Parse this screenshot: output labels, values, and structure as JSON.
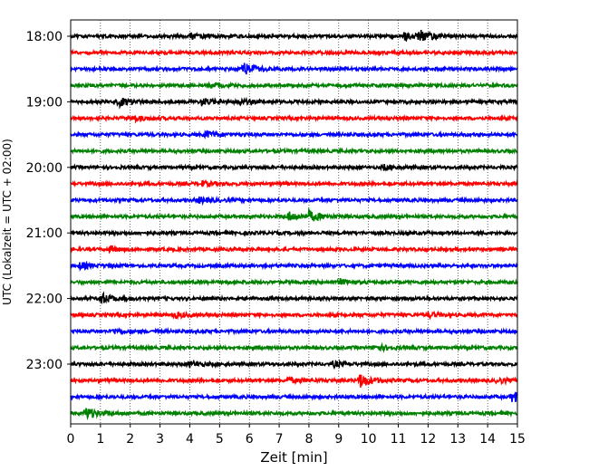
{
  "chart_data": {
    "type": "line",
    "title": "",
    "xlabel": "Zeit  [min]",
    "ylabel": "UTC (Lokalzeit = UTC + 02:00)",
    "xlim": [
      0,
      15
    ],
    "x_ticks": [
      0,
      1,
      2,
      3,
      4,
      5,
      6,
      7,
      8,
      9,
      10,
      11,
      12,
      13,
      14,
      15
    ],
    "x_tick_labels": [
      "0",
      "1",
      "2",
      "3",
      "4",
      "5",
      "6",
      "7",
      "8",
      "9",
      "10",
      "11",
      "12",
      "13",
      "14",
      "15"
    ],
    "y_tick_labels": [
      "18:00",
      "19:00",
      "20:00",
      "21:00",
      "22:00",
      "23:00"
    ],
    "vertical_grid": true,
    "grid_style": "dotted",
    "color_cycle": [
      "#000000",
      "#ff0000",
      "#0000ff",
      "#008000"
    ],
    "start_time": "18:00",
    "trace_interval_minutes": 15,
    "trace_count": 24,
    "events": [
      {
        "trace": "18:00",
        "at_min": 4.0,
        "amplitude": 1.8
      },
      {
        "trace": "18:00",
        "at_min": 11.2,
        "amplitude": 2.3
      },
      {
        "trace": "18:00",
        "at_min": 11.7,
        "amplitude": 3.2
      },
      {
        "trace": "18:30",
        "at_min": 5.8,
        "amplitude": 3.6
      },
      {
        "trace": "18:45",
        "at_min": 4.7,
        "amplitude": 1.4
      },
      {
        "trace": "19:00",
        "at_min": 1.6,
        "amplitude": 2.6
      },
      {
        "trace": "19:00",
        "at_min": 4.4,
        "amplitude": 2.2
      },
      {
        "trace": "19:00",
        "at_min": 5.6,
        "amplitude": 1.5
      },
      {
        "trace": "19:15",
        "at_min": 2.1,
        "amplitude": 1.8
      },
      {
        "trace": "19:30",
        "at_min": 4.5,
        "amplitude": 2.4
      },
      {
        "trace": "20:00",
        "at_min": 10.5,
        "amplitude": 1.6
      },
      {
        "trace": "20:15",
        "at_min": 4.4,
        "amplitude": 1.4
      },
      {
        "trace": "20:30",
        "at_min": 4.3,
        "amplitude": 1.6
      },
      {
        "trace": "20:45",
        "at_min": 7.3,
        "amplitude": 2.8
      },
      {
        "trace": "20:45",
        "at_min": 8.0,
        "amplitude": 3.1
      },
      {
        "trace": "21:15",
        "at_min": 1.3,
        "amplitude": 1.4
      },
      {
        "trace": "21:30",
        "at_min": 0.3,
        "amplitude": 2.0
      },
      {
        "trace": "21:45",
        "at_min": 9.0,
        "amplitude": 1.4
      },
      {
        "trace": "22:00",
        "at_min": 1.0,
        "amplitude": 3.3
      },
      {
        "trace": "22:15",
        "at_min": 3.5,
        "amplitude": 1.4
      },
      {
        "trace": "22:15",
        "at_min": 12.0,
        "amplitude": 1.5
      },
      {
        "trace": "22:30",
        "at_min": 1.4,
        "amplitude": 1.4
      },
      {
        "trace": "22:45",
        "at_min": 10.2,
        "amplitude": 2.0
      },
      {
        "trace": "23:00",
        "at_min": 4.0,
        "amplitude": 1.5
      },
      {
        "trace": "23:00",
        "at_min": 8.8,
        "amplitude": 1.6
      },
      {
        "trace": "23:15",
        "at_min": 7.3,
        "amplitude": 1.4
      },
      {
        "trace": "23:15",
        "at_min": 9.7,
        "amplitude": 4.3
      },
      {
        "trace": "23:15",
        "at_min": 14.3,
        "amplitude": 1.6
      },
      {
        "trace": "23:30",
        "at_min": 14.8,
        "amplitude": 3.5
      },
      {
        "trace": "23:45",
        "at_min": 0.5,
        "amplitude": 3.6
      }
    ]
  }
}
